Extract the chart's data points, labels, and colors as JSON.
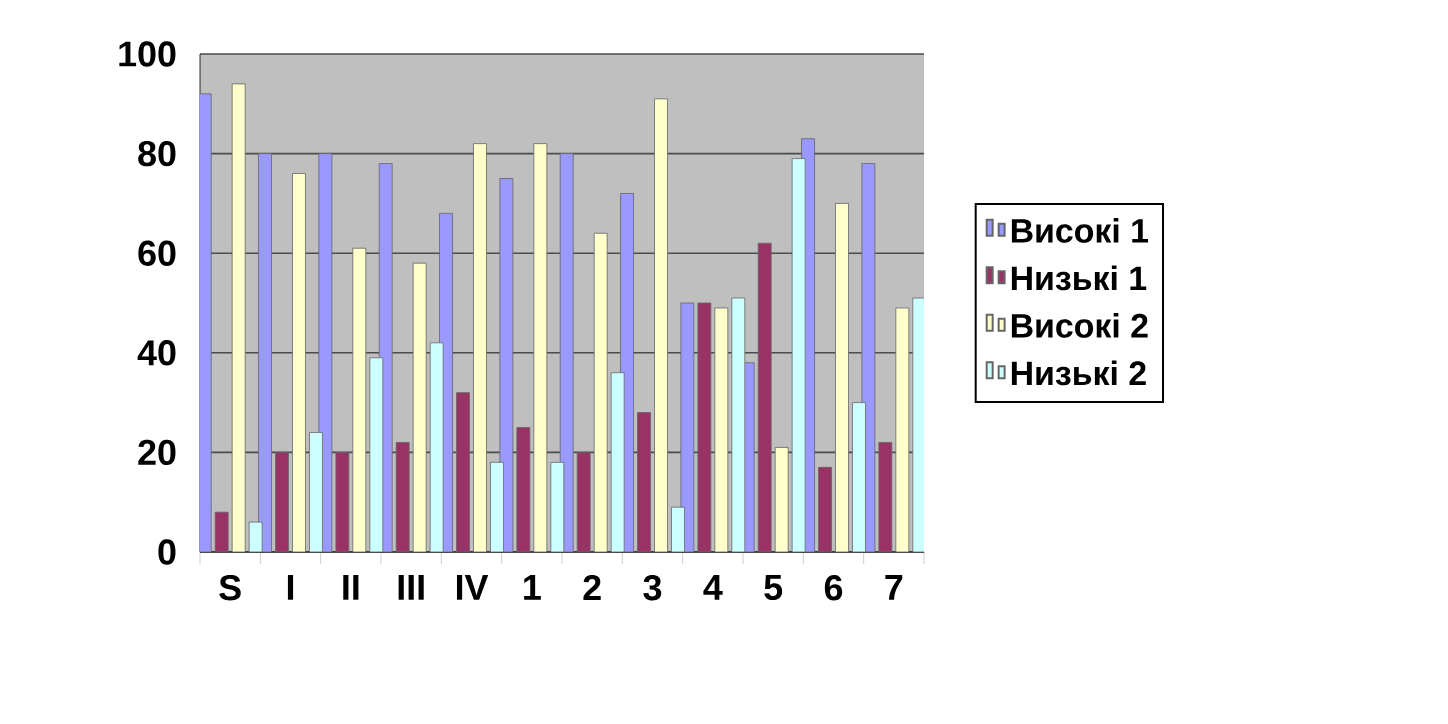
{
  "chart_data": {
    "type": "bar",
    "categories": [
      "S",
      "I",
      "II",
      "III",
      "IV",
      "1",
      "2",
      "3",
      "4",
      "5",
      "6",
      "7"
    ],
    "series": [
      {
        "name": "Високі 1",
        "color": "#9999ff",
        "values": [
          92,
          80,
          80,
          78,
          68,
          75,
          80,
          72,
          50,
          38,
          83,
          78
        ]
      },
      {
        "name": "Низькі 1",
        "color": "#993366",
        "values": [
          8,
          20,
          20,
          22,
          32,
          25,
          20,
          28,
          50,
          62,
          17,
          22
        ]
      },
      {
        "name": "Високі 2",
        "color": "#ffffcc",
        "values": [
          94,
          76,
          61,
          58,
          82,
          82,
          64,
          91,
          49,
          21,
          70,
          49
        ]
      },
      {
        "name": "Низькі 2",
        "color": "#ccffff",
        "values": [
          6,
          24,
          39,
          42,
          18,
          18,
          36,
          9,
          51,
          79,
          30,
          51
        ]
      }
    ],
    "ylim": [
      0,
      100
    ],
    "yticks": [
      0,
      20,
      40,
      60,
      80,
      100
    ],
    "grid": "y",
    "legend": "right"
  }
}
